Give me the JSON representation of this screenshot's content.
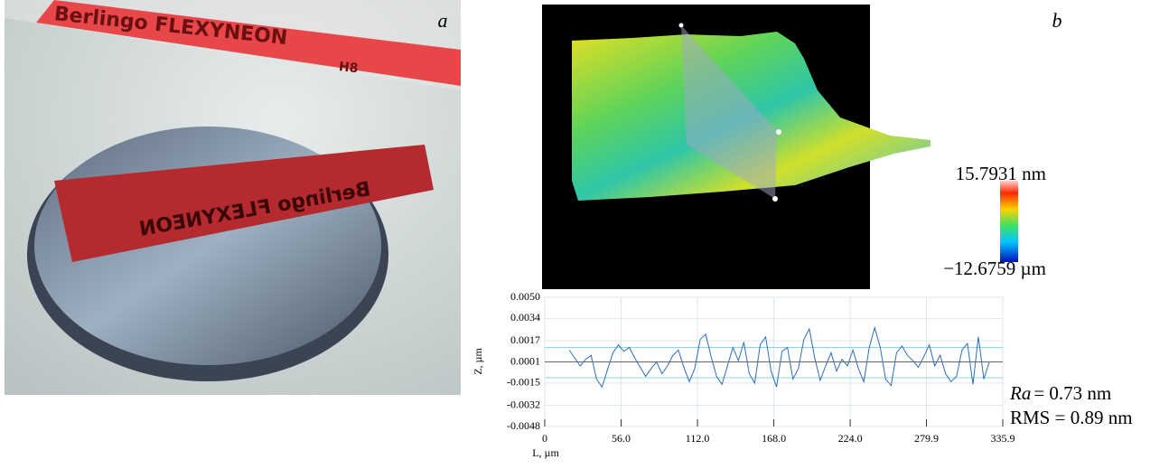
{
  "panel_a": {
    "label": "a",
    "pen_text": "Berlingo FLEXYNEON",
    "pen_grade": "H8"
  },
  "panel_b": {
    "label": "b",
    "colorbar_max": "15.7931 nm",
    "colorbar_min": "−12.6759 µm"
  },
  "chart_data": {
    "type": "line",
    "xlabel": "L, µm",
    "ylabel": "Z, µm",
    "x": [
      18,
      22,
      26,
      30,
      34,
      38,
      42,
      46,
      50,
      54,
      58,
      62,
      66,
      70,
      74,
      78,
      82,
      86,
      90,
      94,
      98,
      102,
      106,
      110,
      114,
      118,
      122,
      126,
      130,
      134,
      138,
      142,
      146,
      150,
      154,
      158,
      162,
      166,
      170,
      174,
      178,
      182,
      186,
      190,
      194,
      198,
      202,
      206,
      210,
      214,
      218,
      222,
      226,
      230,
      234,
      238,
      242,
      246,
      250,
      254,
      258,
      262,
      266,
      270,
      274,
      278,
      282,
      286,
      290,
      294,
      298,
      302,
      306,
      310,
      314,
      318,
      322,
      326
    ],
    "values": [
      0.001,
      0.0004,
      -0.0002,
      0.0003,
      0.0006,
      -0.0012,
      -0.0018,
      -0.0005,
      0.0008,
      0.0014,
      0.0009,
      0.0012,
      0.0004,
      -0.0003,
      -0.001,
      -0.0004,
      0.0001,
      -0.0008,
      -0.0002,
      0.0006,
      0.001,
      -0.0003,
      -0.0014,
      -0.0004,
      0.0018,
      0.0022,
      0.0005,
      -0.001,
      -0.0016,
      -0.0002,
      0.0012,
      0.0002,
      0.0016,
      -0.0008,
      -0.0015,
      0.0014,
      0.002,
      -0.0006,
      -0.0018,
      0.0009,
      0.0012,
      -0.0012,
      -0.0004,
      0.0018,
      0.0026,
      0.0004,
      -0.0013,
      -0.0002,
      0.0008,
      -0.0006,
      0.0003,
      -0.0002,
      0.001,
      -0.0004,
      -0.0014,
      0.0012,
      0.0027,
      0.0012,
      -0.0012,
      -0.0017,
      0.0008,
      0.0013,
      0.0006,
      0.0002,
      -0.0003,
      0.0005,
      0.0014,
      -0.0002,
      0.0006,
      -0.0008,
      -0.0014,
      -0.001,
      0.001,
      0.0015,
      -0.0016,
      0.002,
      -0.0012,
      0.0001
    ],
    "color": "#2f6db5",
    "hlines": [
      {
        "value": 0.0001,
        "color": "#666666"
      },
      {
        "value": 0.0012,
        "color": "#8fd3e6"
      },
      {
        "value": -0.0011,
        "color": "#8fd3e6"
      }
    ],
    "xlim": [
      0,
      335.9
    ],
    "xticks": [
      0,
      {
        "value": 56,
        "label": "56.0"
      },
      {
        "value": 112,
        "label": "112.0"
      },
      {
        "value": 168,
        "label": "168.0"
      },
      {
        "value": 224,
        "label": "224.0"
      },
      279.9,
      335.9
    ],
    "ylim": [
      -0.0048,
      0.005
    ],
    "yticks": [
      {
        "value": 0.005,
        "label": "0.0050"
      },
      0.0034,
      0.0017,
      0.0001,
      -0.0015,
      -0.0032,
      -0.0048
    ],
    "grid": true
  },
  "roughness": {
    "ra_symbol": "Ra",
    "ra_value": "= 0.73 nm",
    "rms": "RMS = 0.89 nm"
  }
}
